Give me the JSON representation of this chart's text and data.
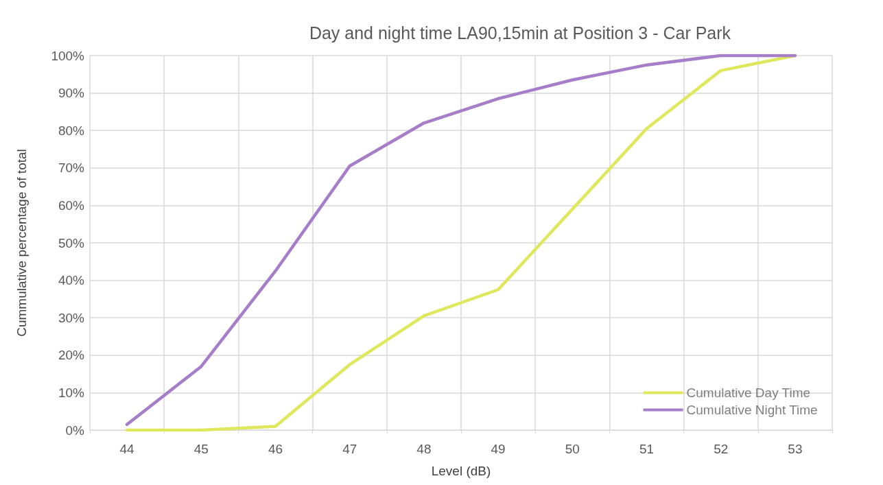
{
  "chart_data": {
    "type": "line",
    "title": "Day and night time LA90,15min at Position 3 - Car Park",
    "xlabel": "Level (dB)",
    "ylabel": "Cummulative percentage of total",
    "categories": [
      "44",
      "45",
      "46",
      "47",
      "48",
      "49",
      "50",
      "51",
      "52",
      "53"
    ],
    "series": [
      {
        "name": "Cumulative Day Time",
        "color": "#dfe85c",
        "values": [
          0,
          0,
          1,
          17.5,
          30.5,
          37.5,
          59,
          80.5,
          96,
          100
        ]
      },
      {
        "name": "Cumulative Night Time",
        "color": "#a57dc8",
        "values": [
          1.5,
          17,
          42.5,
          70.5,
          82,
          88.5,
          93.5,
          97.5,
          100,
          100
        ]
      }
    ],
    "ylim": [
      0,
      100
    ],
    "yticks": [
      {
        "value": 0,
        "label": "0%"
      },
      {
        "value": 10,
        "label": "10%"
      },
      {
        "value": 20,
        "label": "20%"
      },
      {
        "value": 30,
        "label": "30%"
      },
      {
        "value": 40,
        "label": "40%"
      },
      {
        "value": 50,
        "label": "50%"
      },
      {
        "value": 60,
        "label": "60%"
      },
      {
        "value": 70,
        "label": "70%"
      },
      {
        "value": 80,
        "label": "80%"
      },
      {
        "value": 90,
        "label": "90%"
      },
      {
        "value": 100,
        "label": "100%"
      }
    ],
    "grid": true,
    "legend": "bottom right",
    "marker": "none",
    "line_style": "solid"
  }
}
